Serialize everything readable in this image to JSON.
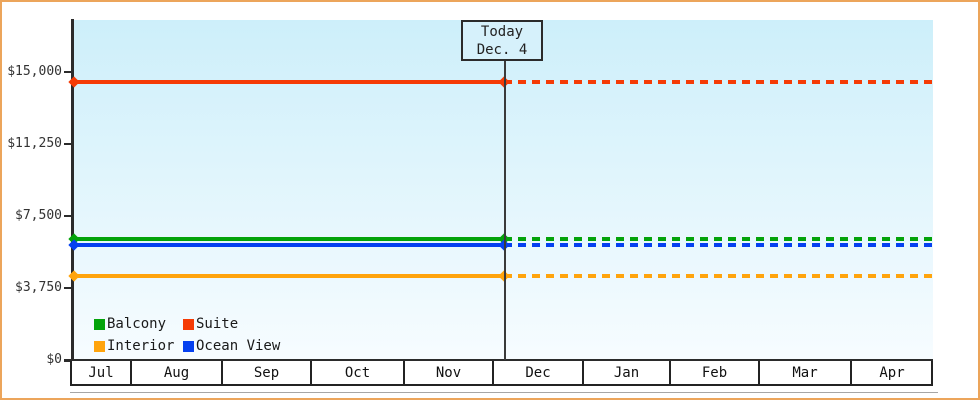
{
  "theme": {
    "frame_border": "#ECA55B",
    "plot_bg_top": "#CDEFFA",
    "plot_bg_bottom": "#F7FCFF",
    "axis_color": "#2B2B2B",
    "today_box_bg": "#D6F1FB",
    "bottom_rule": "#A6A6A6"
  },
  "chart_data": {
    "type": "line",
    "categories_x": [
      "Jul",
      "Aug",
      "Sep",
      "Oct",
      "Nov",
      "Dec",
      "Jan",
      "Feb",
      "Mar",
      "Apr"
    ],
    "y_ticks": [
      {
        "label": "$15,000",
        "value": 15000
      },
      {
        "label": "$11,250",
        "value": 11250
      },
      {
        "label": "$7,500",
        "value": 7500
      },
      {
        "label": "$3,750",
        "value": 3750
      },
      {
        "label": "$0",
        "value": 0
      }
    ],
    "ylim": [
      0,
      17700
    ],
    "grid": false,
    "series": [
      {
        "name": "Suite",
        "color": "#F53B05",
        "value": 14500,
        "dashed_after_today": true
      },
      {
        "name": "Balcony",
        "color": "#03A30A",
        "value": 6300,
        "dashed_after_today": true
      },
      {
        "name": "Ocean View",
        "color": "#0540F0",
        "value": 6000,
        "dashed_after_today": true
      },
      {
        "name": "Interior",
        "color": "#FFA40D",
        "value": 4400,
        "dashed_after_today": true
      }
    ],
    "today_marker": {
      "line1": "Today",
      "line2": "Dec. 4",
      "month": "Dec",
      "day": 4
    },
    "legend": [
      "Balcony",
      "Suite",
      "Interior",
      "Ocean View"
    ],
    "legend_position": "bottom-left",
    "notes": "Flat price lines; solid history left of today line, dashed projection to the right"
  }
}
